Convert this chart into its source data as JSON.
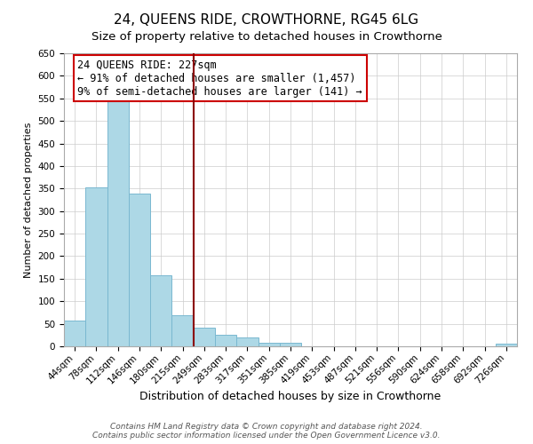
{
  "title": "24, QUEENS RIDE, CROWTHORNE, RG45 6LG",
  "subtitle": "Size of property relative to detached houses in Crowthorne",
  "xlabel": "Distribution of detached houses by size in Crowthorne",
  "ylabel": "Number of detached properties",
  "bar_labels": [
    "44sqm",
    "78sqm",
    "112sqm",
    "146sqm",
    "180sqm",
    "215sqm",
    "249sqm",
    "283sqm",
    "317sqm",
    "351sqm",
    "385sqm",
    "419sqm",
    "453sqm",
    "487sqm",
    "521sqm",
    "556sqm",
    "590sqm",
    "624sqm",
    "658sqm",
    "692sqm",
    "726sqm"
  ],
  "bar_values": [
    57,
    352,
    543,
    338,
    157,
    68,
    42,
    25,
    20,
    8,
    8,
    0,
    0,
    0,
    0,
    0,
    0,
    0,
    0,
    0,
    5
  ],
  "bar_color": "#add8e6",
  "bar_edge_color": "#7ab8d0",
  "vline_color": "#8b0000",
  "vline_x_idx": 6.0,
  "annotation_title": "24 QUEENS RIDE: 227sqm",
  "annotation_line1": "← 91% of detached houses are smaller (1,457)",
  "annotation_line2": "9% of semi-detached houses are larger (141) →",
  "annotation_box_color": "white",
  "annotation_box_edge_color": "#cc0000",
  "ylim": [
    0,
    650
  ],
  "yticks": [
    0,
    50,
    100,
    150,
    200,
    250,
    300,
    350,
    400,
    450,
    500,
    550,
    600,
    650
  ],
  "footer_line1": "Contains HM Land Registry data © Crown copyright and database right 2024.",
  "footer_line2": "Contains public sector information licensed under the Open Government Licence v3.0.",
  "title_fontsize": 11,
  "subtitle_fontsize": 9.5,
  "xlabel_fontsize": 9,
  "ylabel_fontsize": 8,
  "tick_fontsize": 7.5,
  "annotation_fontsize": 8.5,
  "footer_fontsize": 6.5
}
